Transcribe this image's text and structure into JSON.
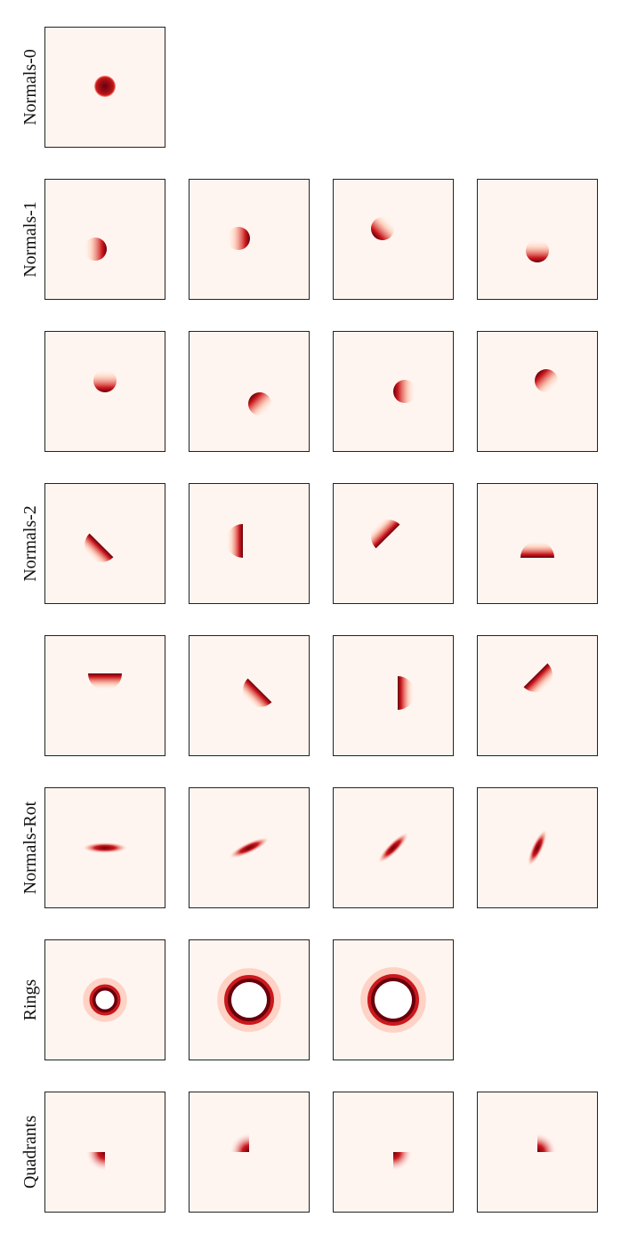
{
  "groups": [
    {
      "label": "Normals-0"
    },
    {
      "label": "Normals-1"
    },
    {
      "label": "Normals-2"
    },
    {
      "label": "Normals-Rot"
    },
    {
      "label": "Rings"
    },
    {
      "label": "Quadrants"
    }
  ]
}
